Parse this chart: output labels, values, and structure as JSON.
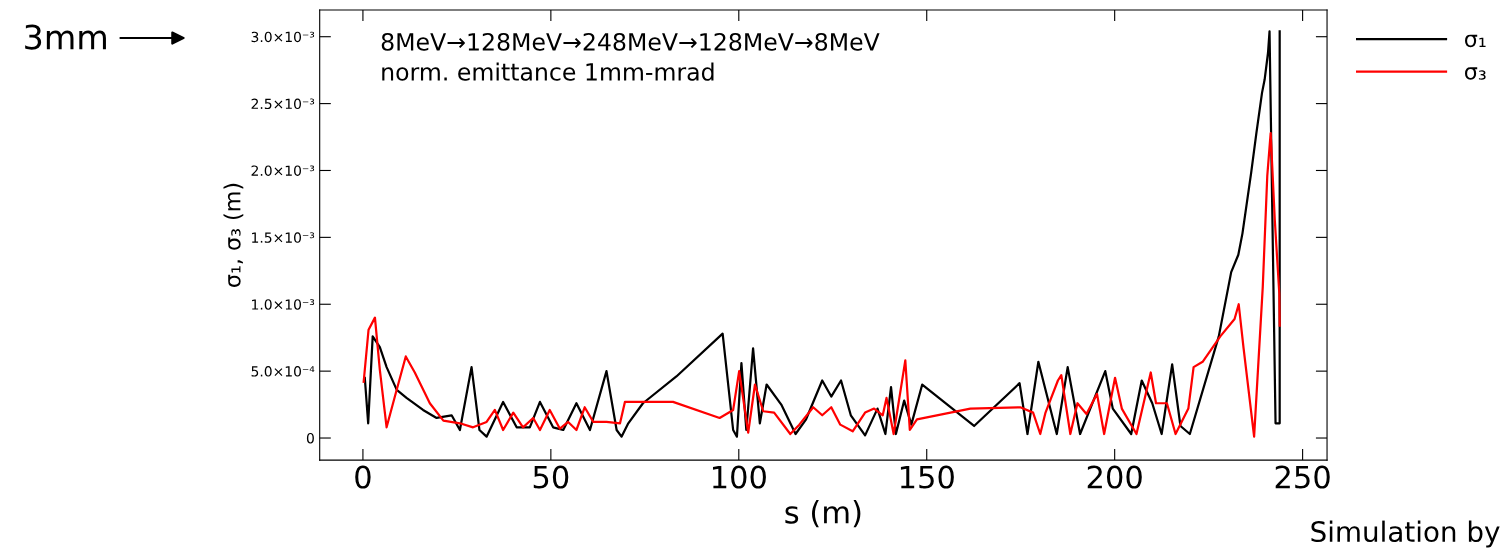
{
  "chart_data": {
    "type": "line",
    "xlabel": "s (m)",
    "ylabel": "σ₁, σ₃ (m)",
    "xlim": [
      -11.5,
      256.5
    ],
    "xticks": [
      0,
      50,
      100,
      150,
      200,
      250
    ],
    "ylim": [
      -0.000165,
      0.0032
    ],
    "yticks": [
      {
        "value": 0,
        "label": "0"
      },
      {
        "value": 0.0005,
        "label": "5.0×10⁻⁴"
      },
      {
        "value": 0.001,
        "label": "1.0×10⁻³"
      },
      {
        "value": 0.0015,
        "label": "1.5×10⁻³"
      },
      {
        "value": 0.002,
        "label": "2.0×10⁻³"
      },
      {
        "value": 0.0025,
        "label": "2.5×10⁻³"
      },
      {
        "value": 0.003,
        "label": "3.0×10⁻³"
      }
    ],
    "grid": false,
    "legend": "top right",
    "marker": "none",
    "line_style": "solid",
    "annotations": [
      "8MeV→128MeV→248MeV→128MeV→8MeV\nnorm. emittance 1mm-mrad",
      "3mm",
      "Simulation by"
    ],
    "series": [
      {
        "name": "σ₁",
        "color": "#000000",
        "x": [
          0.5,
          1.4,
          2.6,
          4.5,
          6.3,
          9,
          11.6,
          16,
          19.6,
          23.6,
          25.8,
          28.9,
          31,
          32.9,
          37.3,
          40.9,
          44.4,
          47.1,
          50.6,
          53.3,
          56.8,
          60.4,
          64.8,
          67.5,
          68.8,
          70.6,
          74.5,
          83.4,
          95.7,
          98.5,
          99.5,
          100.7,
          102,
          103.8,
          105.6,
          107.4,
          111.3,
          115.1,
          117.9,
          122.2,
          124.6,
          127.2,
          129.8,
          133.6,
          136.9,
          139,
          140.5,
          141.8,
          144,
          145.9,
          148.8,
          162.6,
          174.7,
          176.8,
          179.7,
          184.6,
          187.5,
          190.8,
          197.5,
          199.5,
          204.4,
          207.2,
          210,
          212.5,
          215.3,
          217.5,
          220,
          227.7,
          231,
          232.9,
          234,
          236.3,
          237.7,
          239.2,
          239.9,
          240.8,
          241.2,
          242.8,
          243.9,
          243.9
        ],
        "values": [
          0.00045,
          0.00011,
          0.00076,
          0.00068,
          0.00053,
          0.00036,
          0.0003,
          0.00021,
          0.00015,
          0.00017,
          6e-05,
          0.00053,
          6e-05,
          1e-05,
          0.00027,
          8e-05,
          8e-05,
          0.00027,
          8e-05,
          6e-05,
          0.00026,
          6e-05,
          0.0005,
          6e-05,
          1e-05,
          0.00011,
          0.00026,
          0.00046,
          0.00078,
          6e-05,
          1e-05,
          0.00056,
          6e-05,
          0.00067,
          0.00011,
          0.0004,
          0.00025,
          3e-05,
          0.00014,
          0.00043,
          0.00031,
          0.00043,
          0.00017,
          2e-05,
          0.00022,
          3e-05,
          0.00038,
          3e-05,
          0.00028,
          0.0001,
          0.0004,
          9e-05,
          0.00041,
          3e-05,
          0.00057,
          3e-05,
          0.00053,
          3e-05,
          0.0005,
          0.00022,
          3e-05,
          0.00043,
          0.00026,
          3e-05,
          0.00055,
          9e-05,
          3e-05,
          0.00076,
          0.00124,
          0.00137,
          0.00153,
          0.00198,
          0.00228,
          0.00258,
          0.00268,
          0.00288,
          0.00304,
          0.00011,
          0.00011,
          0.00304
        ]
      },
      {
        "name": "σ₃",
        "color": "#ff0000",
        "x": [
          0.2,
          1.5,
          3.2,
          4.5,
          6.3,
          8.5,
          11.4,
          13.8,
          17.8,
          21.4,
          25.8,
          29.3,
          32.9,
          35.1,
          37.3,
          40,
          42.6,
          45.3,
          47.1,
          49.7,
          52.4,
          54.6,
          56.8,
          59,
          61.3,
          64.8,
          68.4,
          69.7,
          82.5,
          94.9,
          98.5,
          100.1,
          102.5,
          104.3,
          106.5,
          109.4,
          113.7,
          116.1,
          119.8,
          122.2,
          124.6,
          127,
          130.3,
          133.6,
          136,
          138.3,
          139.3,
          141.2,
          144.3,
          145.5,
          147.4,
          161.6,
          174.9,
          178.3,
          180.2,
          181.6,
          184.9,
          185.8,
          188.2,
          190.1,
          192.5,
          195.3,
          197.2,
          200.1,
          201.9,
          205.8,
          209.6,
          211,
          213.9,
          216.2,
          219.6,
          221,
          223.4,
          228.1,
          231.9,
          233,
          234.3,
          237.1,
          239.4,
          240.6,
          241.5,
          242.6,
          243.8,
          243.9
        ],
        "values": [
          0.00042,
          0.00081,
          0.0009,
          0.00051,
          8e-05,
          0.00031,
          0.00061,
          0.00049,
          0.00026,
          0.00013,
          0.00011,
          8e-05,
          0.00012,
          0.00021,
          6e-05,
          0.00019,
          8e-05,
          0.00015,
          6e-05,
          0.00021,
          7e-05,
          0.00012,
          6e-05,
          0.00023,
          0.00012,
          0.00012,
          0.00011,
          0.00027,
          0.00027,
          0.00015,
          0.00021,
          0.0005,
          4e-05,
          0.0004,
          0.0002,
          0.00019,
          3e-05,
          0.0001,
          0.00023,
          0.00017,
          0.00023,
          0.0001,
          5e-05,
          0.00019,
          0.00022,
          0.00017,
          0.0003,
          3e-05,
          0.00058,
          6e-05,
          0.00014,
          0.00022,
          0.00023,
          0.00019,
          3e-05,
          0.00019,
          0.00043,
          0.00047,
          3e-05,
          0.00026,
          0.00018,
          0.00033,
          3e-05,
          0.00045,
          0.00022,
          3e-05,
          0.00049,
          0.00026,
          0.00026,
          3e-05,
          0.00022,
          0.00053,
          0.00057,
          0.00076,
          0.00089,
          0.001,
          0.00067,
          1e-05,
          0.00113,
          0.00196,
          0.00228,
          0.00163,
          0.00108,
          0.00084
        ]
      }
    ]
  }
}
